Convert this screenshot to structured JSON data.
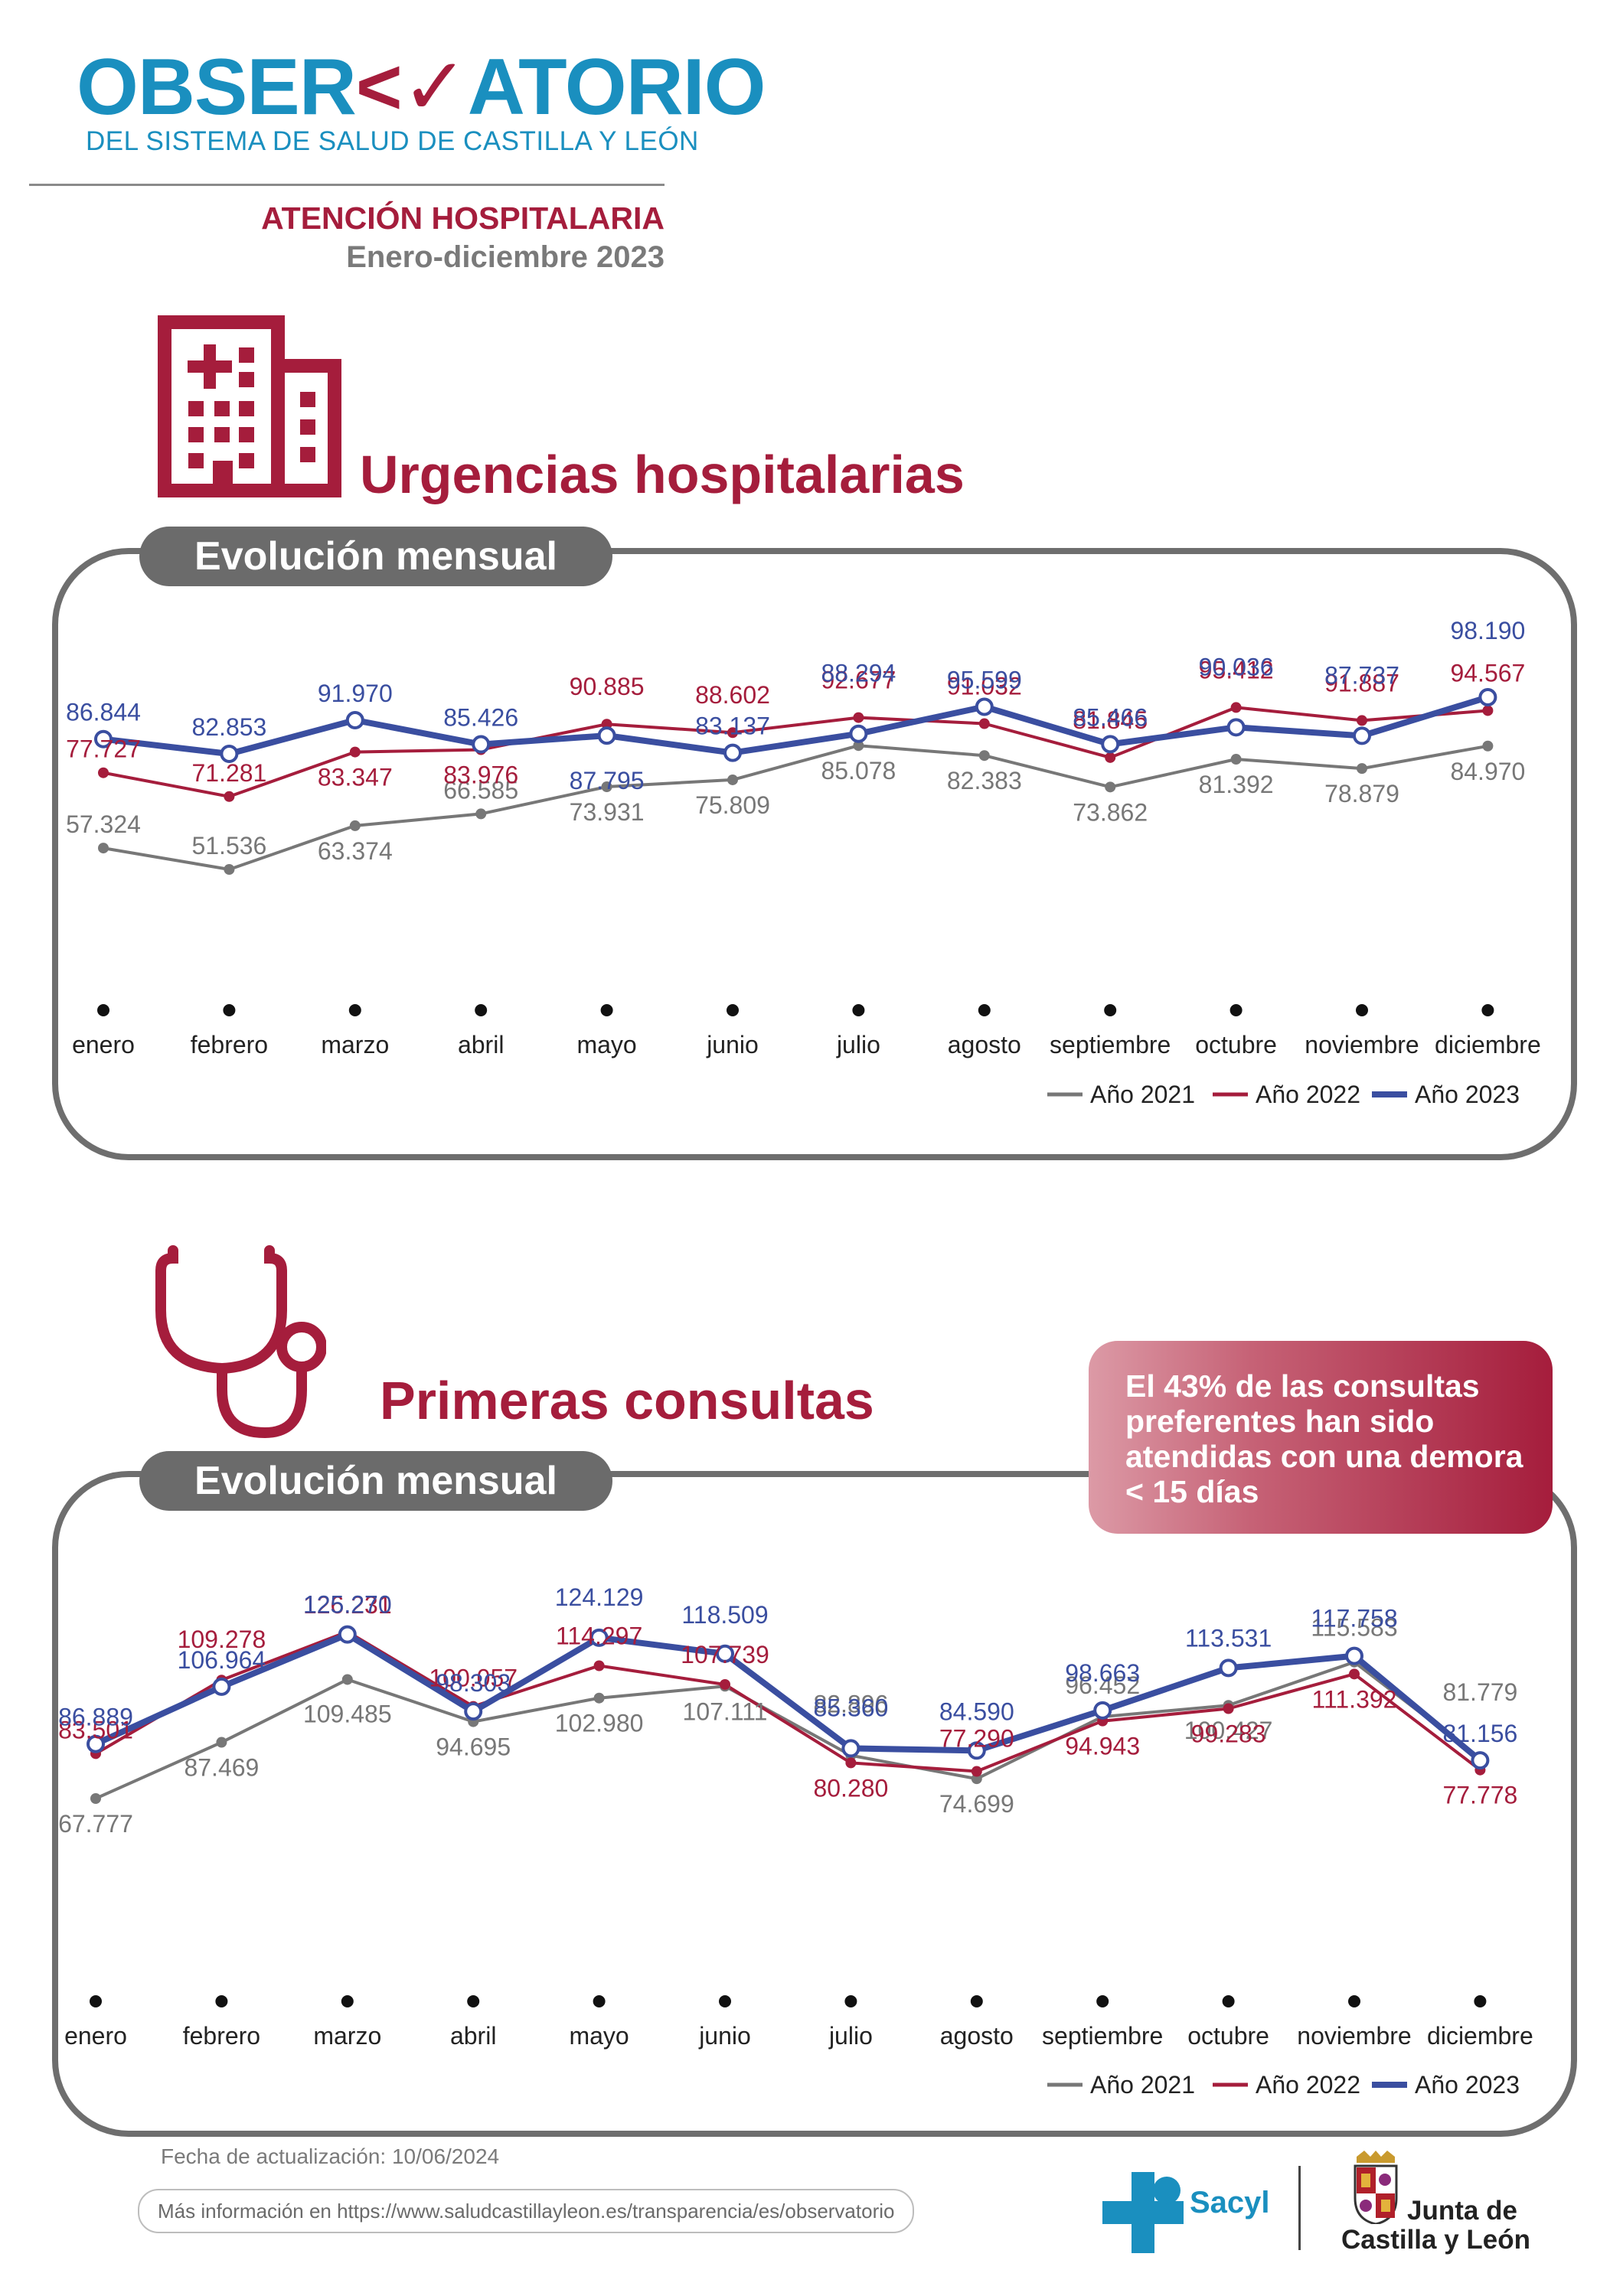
{
  "header": {
    "logo_text_start": "OBSER",
    "logo_text_end": "ATORIO",
    "logo_subtitle": "DEL SISTEMA DE SALUD DE CASTILLA Y LEÓN",
    "section": "ATENCIÓN HOSPITALARIA",
    "period": "Enero-diciembre 2023"
  },
  "urgencias": {
    "title": "Urgencias hospitalarias",
    "pill": "Evolución mensual"
  },
  "consultas": {
    "title": "Primeras consultas",
    "pill": "Evolución mensual",
    "note": "El 43% de las consultas preferentes han sido atendidas con una demora < 15 días"
  },
  "footer": {
    "updated": "Fecha de actualización: 10/06/2024",
    "more_info": "Más información en https://www.saludcastillayleon.es/transparencia/es/observatorio",
    "sacyl": "Sacyl",
    "junta_line1": "Junta de",
    "junta_line2": "Castilla y León"
  },
  "colors": {
    "brand_blue": "#1a8fbf",
    "brand_red": "#a51d3c",
    "series_2021": "#777777",
    "series_2022": "#a51d3c",
    "series_2023": "#3a4ea0"
  },
  "icons": [
    "hospital-building-icon",
    "stethoscope-icon",
    "sacyl-cross-icon",
    "castilla-leon-coat-of-arms-icon"
  ],
  "chart_data": [
    {
      "type": "line",
      "title": "Urgencias hospitalarias",
      "subtitle": "Evolución mensual",
      "categories": [
        "enero",
        "febrero",
        "marzo",
        "abril",
        "mayo",
        "junio",
        "julio",
        "agosto",
        "septiembre",
        "octubre",
        "noviembre",
        "diciembre"
      ],
      "series": [
        {
          "name": "Año 2021",
          "values": [
            57324,
            51536,
            63374,
            66585,
            73931,
            75809,
            85078,
            82383,
            73862,
            81392,
            78879,
            84970
          ],
          "labels": [
            "57.324",
            "51.536",
            "63.374",
            "66.585",
            "73.931",
            "75.809",
            "85.078",
            "82.383",
            "73.862",
            "81.392",
            "78.879",
            "84.970"
          ]
        },
        {
          "name": "Año 2022",
          "values": [
            77727,
            71281,
            83347,
            83976,
            90885,
            88602,
            92677,
            91032,
            81845,
            95412,
            91887,
            94567
          ],
          "labels": [
            "77.727",
            "71.281",
            "83.347",
            "83.976",
            "90.885",
            "88.602",
            "92.677",
            "91.032",
            "81.845",
            "95.412",
            "91.887",
            "94.567"
          ]
        },
        {
          "name": "Año 2023",
          "values": [
            86844,
            82853,
            91970,
            85426,
            87795,
            83137,
            88294,
            95599,
            85466,
            90036,
            87737,
            98190
          ],
          "labels": [
            "86.844",
            "82.853",
            "91.970",
            "85.426",
            "87.795",
            "83.137",
            "88.294",
            "95.599",
            "85.466",
            "90.036",
            "87.737",
            "98.190"
          ]
        }
      ],
      "legend": "bottom-right",
      "grid": false
    },
    {
      "type": "line",
      "title": "Primeras consultas",
      "subtitle": "Evolución mensual",
      "categories": [
        "enero",
        "febrero",
        "marzo",
        "abril",
        "mayo",
        "junio",
        "julio",
        "agosto",
        "septiembre",
        "octubre",
        "noviembre",
        "diciembre"
      ],
      "series": [
        {
          "name": "Año 2021",
          "values": [
            67777,
            87469,
            109485,
            94695,
            102980,
            107111,
            82896,
            74699,
            96452,
            100427,
            115583,
            81779
          ],
          "labels": [
            "67.777",
            "87.469",
            "109.485",
            "94.695",
            "102.980",
            "107.111",
            "82.896",
            "74.699",
            "96.452",
            "100.427",
            "115.583",
            "81.779"
          ]
        },
        {
          "name": "Año 2022",
          "values": [
            83501,
            109278,
            126231,
            100057,
            114297,
            107739,
            80280,
            77290,
            94943,
            99283,
            111392,
            77778
          ],
          "labels": [
            "83.501",
            "109.278",
            "126.231",
            "100.057",
            "114.297",
            "107.739",
            "80.280",
            "77.290",
            "94.943",
            "99.283",
            "111.392",
            "77.778"
          ]
        },
        {
          "name": "Año 2023",
          "values": [
            86889,
            106964,
            125270,
            98303,
            124129,
            118509,
            85360,
            84590,
            98663,
            113531,
            117758,
            81156
          ],
          "labels": [
            "86.889",
            "106.964",
            "125.270",
            "98.303",
            "124.129",
            "118.509",
            "85.360",
            "84.590",
            "98.663",
            "113.531",
            "117.758",
            "81.156"
          ]
        }
      ],
      "legend": "bottom-right",
      "grid": false
    }
  ]
}
